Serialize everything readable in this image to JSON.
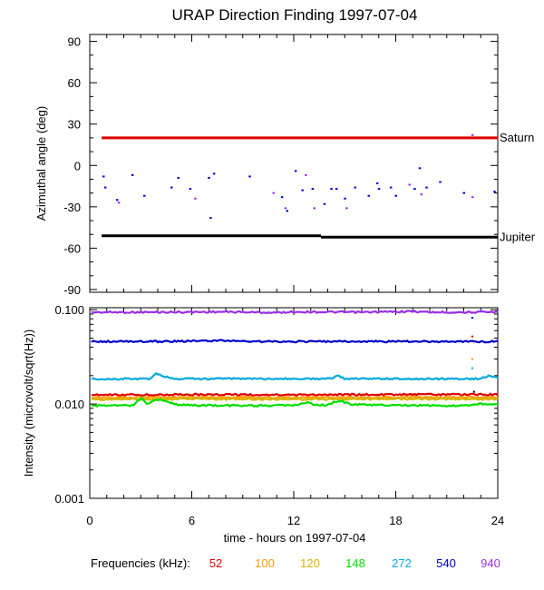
{
  "chart_data": {
    "title": "URAP Direction Finding  1997-07-04",
    "xlabel": "time - hours on 1997-07-04",
    "x_ticks": [
      "0",
      "6",
      "12",
      "18",
      "24"
    ],
    "xlim": [
      0,
      24
    ],
    "frequency_legend": {
      "label": "Frequencies (kHz):",
      "items": [
        {
          "name": "52",
          "color": "#e00000"
        },
        {
          "name": "100",
          "color": "#ff9900"
        },
        {
          "name": "120",
          "color": "#d6b400"
        },
        {
          "name": "148",
          "color": "#00e000"
        },
        {
          "name": "272",
          "color": "#00a8e0"
        },
        {
          "name": "540",
          "color": "#0000d0"
        },
        {
          "name": "940",
          "color": "#9a30e0"
        }
      ]
    },
    "panels": [
      {
        "type": "scatter",
        "ylabel": "Azimuthal angle (deg)",
        "ylim": [
          -92,
          95
        ],
        "y_ticks": [
          "90",
          "60",
          "30",
          "0",
          "-30",
          "-60",
          "-90"
        ],
        "reference_lines": [
          {
            "name": "Saturn",
            "color": "#e00000",
            "segments": [
              [
                0.7,
                20,
                24,
                20
              ]
            ]
          },
          {
            "name": "Jupiter",
            "color": "#000000",
            "segments": [
              [
                0.7,
                -51,
                13.6,
                -51
              ],
              [
                13.6,
                -52,
                24,
                -52
              ]
            ]
          }
        ],
        "points": [
          {
            "x": 0.8,
            "y": -8,
            "color": "#0000d0"
          },
          {
            "x": 0.9,
            "y": -16,
            "color": "#0000d0"
          },
          {
            "x": 1.6,
            "y": -25,
            "color": "#0000d0"
          },
          {
            "x": 1.7,
            "y": -27,
            "color": "#9a30e0"
          },
          {
            "x": 2.5,
            "y": -7,
            "color": "#0000d0"
          },
          {
            "x": 3.2,
            "y": -22,
            "color": "#0000d0"
          },
          {
            "x": 4.8,
            "y": -16,
            "color": "#0000d0"
          },
          {
            "x": 5.2,
            "y": -9,
            "color": "#0000d0"
          },
          {
            "x": 5.9,
            "y": -17,
            "color": "#0000d0"
          },
          {
            "x": 6.2,
            "y": -24,
            "color": "#9a30e0"
          },
          {
            "x": 7.0,
            "y": -9,
            "color": "#0000d0"
          },
          {
            "x": 7.3,
            "y": -6,
            "color": "#0000d0"
          },
          {
            "x": 7.1,
            "y": -38,
            "color": "#0000d0"
          },
          {
            "x": 9.4,
            "y": -8,
            "color": "#0000d0"
          },
          {
            "x": 10.8,
            "y": -20,
            "color": "#9a30e0"
          },
          {
            "x": 11.3,
            "y": -23,
            "color": "#0000d0"
          },
          {
            "x": 11.5,
            "y": -31,
            "color": "#9a30e0"
          },
          {
            "x": 11.6,
            "y": -33,
            "color": "#0000d0"
          },
          {
            "x": 12.1,
            "y": -4,
            "color": "#0000d0"
          },
          {
            "x": 12.5,
            "y": -18,
            "color": "#0000d0"
          },
          {
            "x": 12.7,
            "y": -7,
            "color": "#9a30e0"
          },
          {
            "x": 13.1,
            "y": -17,
            "color": "#0000d0"
          },
          {
            "x": 13.2,
            "y": -31,
            "color": "#9a30e0"
          },
          {
            "x": 13.8,
            "y": -28,
            "color": "#0000d0"
          },
          {
            "x": 14.2,
            "y": -17,
            "color": "#0000d0"
          },
          {
            "x": 14.5,
            "y": -17,
            "color": "#0000d0"
          },
          {
            "x": 15.0,
            "y": -24,
            "color": "#0000d0"
          },
          {
            "x": 15.1,
            "y": -31,
            "color": "#9a30e0"
          },
          {
            "x": 15.6,
            "y": -16,
            "color": "#0000d0"
          },
          {
            "x": 16.4,
            "y": -22,
            "color": "#0000d0"
          },
          {
            "x": 16.9,
            "y": -13,
            "color": "#0000d0"
          },
          {
            "x": 17.0,
            "y": -17,
            "color": "#0000d0"
          },
          {
            "x": 17.7,
            "y": -16,
            "color": "#0000d0"
          },
          {
            "x": 18.0,
            "y": -22,
            "color": "#0000d0"
          },
          {
            "x": 18.8,
            "y": -14,
            "color": "#9a30e0"
          },
          {
            "x": 19.1,
            "y": -17,
            "color": "#0000d0"
          },
          {
            "x": 19.4,
            "y": -2,
            "color": "#0000d0"
          },
          {
            "x": 19.5,
            "y": -21,
            "color": "#9a30e0"
          },
          {
            "x": 19.8,
            "y": -16,
            "color": "#0000d0"
          },
          {
            "x": 20.6,
            "y": -12,
            "color": "#0000d0"
          },
          {
            "x": 22.0,
            "y": -20,
            "color": "#0000d0"
          },
          {
            "x": 22.5,
            "y": -23,
            "color": "#9a30e0"
          },
          {
            "x": 22.5,
            "y": 22,
            "color": "#9a30e0"
          },
          {
            "x": 23.8,
            "y": -19,
            "color": "#0000d0"
          }
        ]
      },
      {
        "type": "line",
        "ylabel": "Intensity (microvolt/sqrt(Hz))",
        "yscale": "log",
        "ylim": [
          0.001,
          0.105
        ],
        "y_ticks": [
          "0.100",
          "0.010",
          "0.001"
        ],
        "series": [
          {
            "name": "940",
            "color": "#9a30e0",
            "base": 0.094,
            "t": [
              0.1,
              4,
              8,
              11,
              12,
              16,
              19,
              20,
              23,
              24
            ],
            "v": [
              0.094,
              0.094,
              0.095,
              0.093,
              0.095,
              0.094,
              0.096,
              0.094,
              0.094,
              0.095
            ]
          },
          {
            "name": "540",
            "color": "#0000d0",
            "base": 0.046,
            "t": [
              0.1,
              4,
              8,
              10,
              12,
              14,
              17,
              20,
              23,
              24
            ],
            "v": [
              0.046,
              0.046,
              0.047,
              0.046,
              0.046,
              0.046,
              0.046,
              0.046,
              0.046,
              0.046
            ]
          },
          {
            "name": "272",
            "color": "#00a8e0",
            "base": 0.0185,
            "t": [
              0.1,
              3.5,
              3.9,
              4.4,
              5,
              8,
              12,
              14.2,
              14.6,
              15,
              20,
              23,
              23.5,
              24
            ],
            "v": [
              0.0185,
              0.0185,
              0.021,
              0.0195,
              0.0185,
              0.0185,
              0.0185,
              0.0185,
              0.02,
              0.0185,
              0.0185,
              0.0185,
              0.02,
              0.019
            ]
          },
          {
            "name": "52",
            "color": "#e00000",
            "base": 0.0125,
            "t": [
              0.1,
              6,
              12,
              18,
              24
            ],
            "v": [
              0.0125,
              0.0126,
              0.0125,
              0.0126,
              0.0126
            ]
          },
          {
            "name": "100",
            "color": "#ff9900",
            "base": 0.0118,
            "t": [
              0.1,
              6,
              12,
              18,
              24
            ],
            "v": [
              0.0117,
              0.0118,
              0.0117,
              0.0118,
              0.0118
            ]
          },
          {
            "name": "120",
            "color": "#d6b400",
            "base": 0.0113,
            "t": [
              0.1,
              6,
              12,
              18,
              24
            ],
            "v": [
              0.0112,
              0.0113,
              0.0112,
              0.0113,
              0.0113
            ]
          },
          {
            "name": "148",
            "color": "#00e000",
            "base": 0.0096,
            "t": [
              0.1,
              2.6,
              3.0,
              3.4,
              3.8,
              4.1,
              4.6,
              5.2,
              6,
              10,
              12,
              12.4,
              12.8,
              13.2,
              14,
              14.3,
              14.8,
              15.4,
              18,
              22,
              23,
              24
            ],
            "v": [
              0.0096,
              0.0097,
              0.0116,
              0.0098,
              0.0108,
              0.0113,
              0.0104,
              0.0098,
              0.0097,
              0.0096,
              0.0097,
              0.01,
              0.0104,
              0.0099,
              0.0097,
              0.0103,
              0.0107,
              0.0099,
              0.0097,
              0.0096,
              0.01,
              0.0099
            ]
          }
        ],
        "late_points": [
          {
            "x": 22.5,
            "y": 0.082,
            "color": "#0000d0"
          },
          {
            "x": 22.5,
            "y": 0.052,
            "color": "#e00000"
          },
          {
            "x": 22.5,
            "y": 0.03,
            "color": "#ff9900"
          },
          {
            "x": 22.5,
            "y": 0.024,
            "color": "#00a8e0"
          },
          {
            "x": 22.6,
            "y": 0.0135,
            "color": "#000000"
          }
        ]
      }
    ]
  }
}
